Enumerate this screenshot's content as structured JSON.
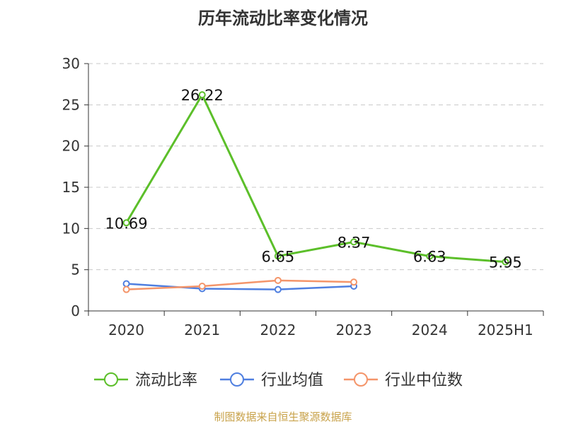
{
  "chart_data": {
    "type": "line",
    "title": "历年流动比率变化情况",
    "categories": [
      "2020",
      "2021",
      "2022",
      "2023",
      "2024",
      "2025H1"
    ],
    "ylim": [
      0,
      30
    ],
    "yticks": [
      "0",
      "5",
      "10",
      "15",
      "20",
      "25",
      "30"
    ],
    "grid": true,
    "legend_position": "bottom",
    "series": [
      {
        "name": "流动比率",
        "color": "#5cbf2a",
        "values": [
          10.69,
          26.22,
          6.65,
          8.37,
          6.63,
          5.95
        ],
        "labels": [
          "10.69",
          "26.22",
          "6.65",
          "8.37",
          "6.63",
          "5.95"
        ]
      },
      {
        "name": "行业均值",
        "color": "#4f7fe0",
        "values": [
          3.3,
          2.7,
          2.6,
          3.0,
          null,
          null
        ]
      },
      {
        "name": "行业中位数",
        "color": "#f4956a",
        "values": [
          2.6,
          3.0,
          3.7,
          3.5,
          null,
          null
        ]
      }
    ]
  },
  "source": "制图数据来自恒生聚源数据库"
}
